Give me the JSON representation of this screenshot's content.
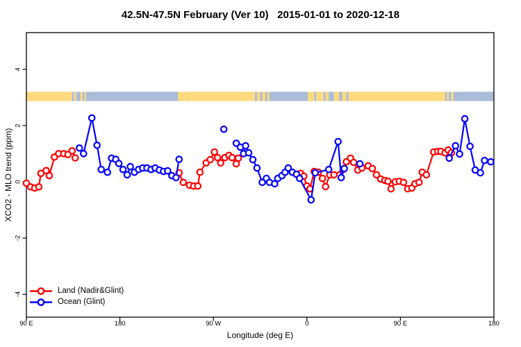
{
  "title": "42.5N-47.5N February (Ver 10)   2015-01-01 to 2020-12-18",
  "chart_data": {
    "type": "line",
    "title": "42.5N-47.5N February (Ver 10)   2015-01-01 to 2020-12-18",
    "xlabel": "Longitude (deg E)",
    "ylabel": "XCO2 - MLO trend (ppm)",
    "grid": false,
    "legend_position": "bottom-left",
    "x_axis": {
      "note": "axis wraps eastward: 90E -> 180 -> 90W -> 0 -> 90E -> 180 (450 deg total)",
      "range_axis_deg": [
        0,
        450
      ],
      "ticks_axis_deg": [
        0,
        90,
        180,
        270,
        360,
        450
      ],
      "tick_labels": [
        "90 E",
        "180",
        "90 W",
        "0",
        "90 E",
        "180"
      ]
    },
    "y_axis": {
      "range": [
        -4.85,
        5.3
      ],
      "ticks": [
        -4,
        -2,
        0,
        2,
        4
      ],
      "tick_labels": [
        "-4",
        "-2",
        "0",
        "2",
        "4"
      ]
    },
    "legend": [
      {
        "label": "Land (Nadir&Glint)",
        "color": "#ff0000"
      },
      {
        "label": "Ocean (Glint)",
        "color": "#0000ff"
      }
    ],
    "colors": {
      "land": "#ff0000",
      "ocean": "#0000ff",
      "strip_land": "#fed97e",
      "strip_ocean": "#aabcd8",
      "axis": "#000000"
    },
    "map_strip": {
      "description": "land/ocean strip across 42.5N-47.5N drawn at y ~ 3 ppm",
      "y_band": [
        2.87,
        3.2
      ],
      "spans": [
        {
          "from": 0,
          "to": 44,
          "type": "land"
        },
        {
          "from": 44,
          "to": 46,
          "type": "ocean"
        },
        {
          "from": 46,
          "to": 48,
          "type": "land"
        },
        {
          "from": 48,
          "to": 52,
          "type": "ocean"
        },
        {
          "from": 52,
          "to": 54,
          "type": "land"
        },
        {
          "from": 54,
          "to": 56,
          "type": "ocean"
        },
        {
          "from": 56,
          "to": 57.5,
          "type": "land"
        },
        {
          "from": 57.5,
          "to": 146,
          "type": "ocean"
        },
        {
          "from": 146,
          "to": 220,
          "type": "land"
        },
        {
          "from": 220,
          "to": 222,
          "type": "ocean"
        },
        {
          "from": 222,
          "to": 225,
          "type": "land"
        },
        {
          "from": 225,
          "to": 227,
          "type": "ocean"
        },
        {
          "from": 227,
          "to": 230,
          "type": "land"
        },
        {
          "from": 230,
          "to": 232,
          "type": "ocean"
        },
        {
          "from": 232,
          "to": 234,
          "type": "land"
        },
        {
          "from": 234,
          "to": 271,
          "type": "ocean"
        },
        {
          "from": 271,
          "to": 277,
          "type": "land"
        },
        {
          "from": 277,
          "to": 279,
          "type": "ocean"
        },
        {
          "from": 279,
          "to": 286,
          "type": "land"
        },
        {
          "from": 286,
          "to": 288,
          "type": "ocean"
        },
        {
          "from": 288,
          "to": 291,
          "type": "land"
        },
        {
          "from": 291,
          "to": 296,
          "type": "ocean"
        },
        {
          "from": 296,
          "to": 301,
          "type": "land"
        },
        {
          "from": 301,
          "to": 304,
          "type": "ocean"
        },
        {
          "from": 304,
          "to": 308,
          "type": "land"
        },
        {
          "from": 308,
          "to": 310,
          "type": "ocean"
        },
        {
          "from": 310,
          "to": 403,
          "type": "land"
        },
        {
          "from": 403,
          "to": 405,
          "type": "ocean"
        },
        {
          "from": 405,
          "to": 406.5,
          "type": "land"
        },
        {
          "from": 406.5,
          "to": 409,
          "type": "ocean"
        },
        {
          "from": 409,
          "to": 411,
          "type": "land"
        },
        {
          "from": 411,
          "to": 450,
          "type": "ocean"
        }
      ]
    },
    "series": [
      {
        "name": "Land (Nadir&Glint)",
        "color": "#ff0000",
        "isolated_points": [],
        "segments": [
          [
            [
              0,
              -0.05
            ],
            [
              4,
              -0.18
            ],
            [
              8,
              -0.22
            ],
            [
              12,
              -0.18
            ],
            [
              14,
              0.3
            ],
            [
              19,
              0.4
            ],
            [
              22,
              0.22
            ],
            [
              27,
              0.88
            ],
            [
              31,
              1.0
            ],
            [
              36,
              1.0
            ],
            [
              40,
              0.97
            ],
            [
              44,
              1.1
            ],
            [
              47,
              0.85
            ]
          ],
          [
            [
              147,
              0.32
            ],
            [
              151,
              -0.02
            ],
            [
              157,
              -0.12
            ],
            [
              161,
              -0.15
            ],
            [
              165,
              -0.15
            ],
            [
              167,
              0.34
            ],
            [
              173,
              0.67
            ],
            [
              177,
              0.79
            ],
            [
              181,
              1.06
            ],
            [
              184,
              0.86
            ],
            [
              187,
              0.67
            ],
            [
              191,
              0.86
            ],
            [
              195,
              0.94
            ],
            [
              198,
              0.86
            ],
            [
              202,
              0.64
            ],
            [
              204,
              0.84
            ]
          ],
          [
            [
              264,
              0.3
            ],
            [
              267,
              0.2
            ],
            [
              270,
              -0.15
            ],
            [
              273,
              -0.25
            ],
            [
              277,
              0.37
            ],
            [
              281,
              0.34
            ],
            [
              285,
              0.12
            ],
            [
              288,
              -0.17
            ],
            [
              292,
              0.25
            ],
            [
              296,
              0.25
            ],
            [
              305,
              0.44
            ],
            [
              308,
              0.71
            ],
            [
              312,
              0.84
            ],
            [
              315,
              0.69
            ],
            [
              319,
              0.42
            ],
            [
              323,
              0.49
            ],
            [
              329,
              0.57
            ],
            [
              333,
              0.47
            ],
            [
              337,
              0.25
            ],
            [
              341,
              0.1
            ],
            [
              345,
              0.05
            ],
            [
              348,
              0.02
            ],
            [
              351,
              -0.25
            ],
            [
              355,
              0.0
            ],
            [
              359,
              0.02
            ],
            [
              363,
              -0.02
            ],
            [
              367,
              -0.25
            ],
            [
              371,
              -0.22
            ],
            [
              374,
              -0.07
            ],
            [
              378,
              -0.02
            ],
            [
              381,
              0.34
            ],
            [
              385,
              0.25
            ],
            [
              392,
              1.06
            ],
            [
              396,
              1.08
            ],
            [
              399,
              1.08
            ],
            [
              403,
              1.03
            ],
            [
              406,
              1.13
            ],
            [
              409,
              1.03
            ]
          ]
        ]
      },
      {
        "name": "Ocean (Glint)",
        "color": "#0000ff",
        "isolated_points": [
          [
            190,
            1.87
          ],
          [
            321,
            0.64
          ]
        ],
        "segments": [
          [
            [
              51,
              1.2
            ],
            [
              55,
              1.0
            ],
            [
              63,
              2.27
            ],
            [
              68,
              1.3
            ],
            [
              72,
              0.44
            ],
            [
              78,
              0.34
            ],
            [
              82,
              0.84
            ],
            [
              86,
              0.8
            ],
            [
              89,
              0.65
            ],
            [
              93,
              0.44
            ],
            [
              97,
              0.25
            ],
            [
              100,
              0.54
            ],
            [
              104,
              0.34
            ],
            [
              108,
              0.44
            ],
            [
              112,
              0.49
            ],
            [
              116,
              0.49
            ],
            [
              120,
              0.44
            ],
            [
              124,
              0.49
            ],
            [
              128,
              0.42
            ],
            [
              132,
              0.37
            ],
            [
              136,
              0.39
            ],
            [
              140,
              0.22
            ],
            [
              144,
              0.15
            ],
            [
              147,
              0.8
            ]
          ],
          [
            [
              202,
              1.37
            ],
            [
              206,
              1.23
            ],
            [
              209,
              1.0
            ],
            [
              211,
              1.28
            ],
            [
              214,
              1.03
            ],
            [
              218,
              0.79
            ],
            [
              222,
              0.49
            ],
            [
              227,
              -0.02
            ],
            [
              231,
              0.12
            ],
            [
              234,
              -0.02
            ],
            [
              239,
              -0.07
            ],
            [
              242,
              0.12
            ],
            [
              246,
              0.22
            ],
            [
              249,
              0.34
            ],
            [
              252,
              0.49
            ],
            [
              256,
              0.34
            ],
            [
              260,
              0.27
            ],
            [
              263,
              0.12
            ],
            [
              274,
              -0.64
            ],
            [
              278,
              0.32
            ],
            [
              291,
              0.44
            ],
            [
              300,
              1.43
            ],
            [
              303,
              0.15
            ],
            [
              306,
              0.47
            ]
          ],
          [
            [
              407,
              0.84
            ],
            [
              413,
              1.28
            ],
            [
              417,
              0.99
            ],
            [
              422,
              2.24
            ],
            [
              427,
              1.26
            ],
            [
              432,
              0.42
            ],
            [
              437,
              0.32
            ],
            [
              441,
              0.76
            ],
            [
              447,
              0.71
            ]
          ]
        ]
      }
    ]
  }
}
